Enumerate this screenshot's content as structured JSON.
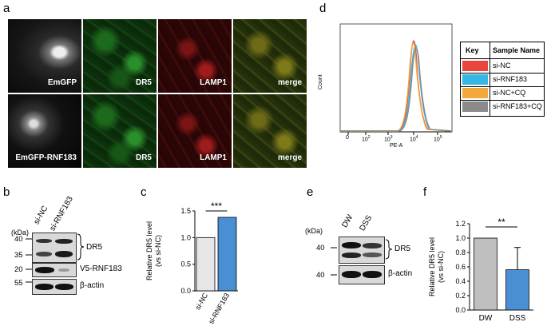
{
  "panel_letters": {
    "a": "a",
    "b": "b",
    "c": "c",
    "d": "d",
    "e": "e",
    "f": "f"
  },
  "panel_a": {
    "row1": [
      "EmGFP",
      "DR5",
      "LAMP1",
      "merge"
    ],
    "row2": [
      "EmGFP-RNF183",
      "DR5",
      "LAMP1",
      "merge"
    ]
  },
  "panel_b": {
    "kda": "(kDa)",
    "lanes": [
      "si-NC",
      "si-RNF183"
    ],
    "markers": [
      "40",
      "35",
      "20",
      "55"
    ],
    "labels": [
      "DR5",
      "V5-RNF183",
      "β-actin"
    ]
  },
  "panel_e": {
    "kda": "(kDa)",
    "lanes": [
      "DW",
      "DSS"
    ],
    "markers": [
      "40",
      "40"
    ],
    "labels": [
      "DR5",
      "β-actin"
    ]
  },
  "panel_d": {
    "ylabel": "Count",
    "xlabel": "PE-A",
    "xticks": [
      "0",
      "10",
      "10",
      "10",
      "10"
    ],
    "xtick_exp": [
      "",
      "2",
      "3",
      "4",
      "5"
    ],
    "legend_head": [
      "Key",
      "Sample Name"
    ],
    "legend_items": [
      {
        "name": "si-NC",
        "color": "#e8453c"
      },
      {
        "name": "si-RNF183",
        "color": "#36b6e3"
      },
      {
        "name": "si-NC+CQ",
        "color": "#f2a83a"
      },
      {
        "name": "si-RNF183+CQ",
        "color": "#8a8a8a"
      }
    ]
  },
  "chart_data": [
    {
      "type": "bar",
      "panel": "c",
      "categories": [
        "si-NC",
        "si-RNF183"
      ],
      "values": [
        1.0,
        1.38
      ],
      "colors": [
        "#e6e6e6",
        "#4a8fd4"
      ],
      "ylabel": "Relative DR5 level (vs si-NC)",
      "ylim": [
        0,
        1.5
      ],
      "yticks": [
        "0.0",
        "0.5",
        "1.0",
        "1.5"
      ],
      "significance": "***"
    },
    {
      "type": "bar",
      "panel": "f",
      "categories": [
        "DW",
        "DSS"
      ],
      "values": [
        1.0,
        0.56
      ],
      "errors": [
        0,
        0.31
      ],
      "colors": [
        "#bfbfbf",
        "#4a8fd4"
      ],
      "ylabel": "Relative DR5 level (vs si-NC)",
      "ylim": [
        0,
        1.2
      ],
      "yticks": [
        "0.0",
        "0.2",
        "0.4",
        "0.6",
        "0.8",
        "1.0",
        "1.2"
      ],
      "significance": "**"
    }
  ]
}
